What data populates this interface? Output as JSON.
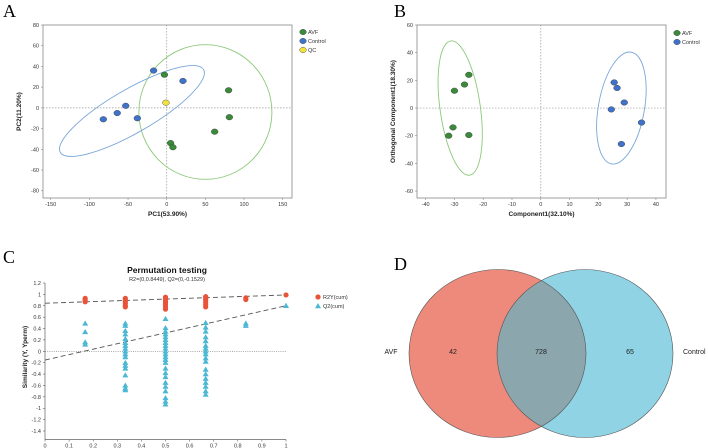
{
  "chart_data": [
    {
      "panel": "A",
      "type": "scatter",
      "xlabel": "PC1(53.90%)",
      "ylabel": "PC2(11.20%)",
      "xlim": [
        -160,
        162
      ],
      "ylim": [
        -87,
        80
      ],
      "xticks": [
        -150,
        -100,
        -50,
        0,
        50,
        100,
        150
      ],
      "yticks": [
        -80,
        -60,
        -40,
        -20,
        0,
        20,
        40,
        60,
        80
      ],
      "legend_position": "top-right",
      "series": [
        {
          "name": "AVF",
          "color": "#3a8a3a",
          "points": [
            [
              -3,
              32
            ],
            [
              80,
              17
            ],
            [
              81,
              -9
            ],
            [
              62,
              -23
            ],
            [
              5,
              -34
            ],
            [
              8,
              -38
            ]
          ],
          "ellipse": {
            "cx": 50,
            "cy": -4,
            "rx": 86,
            "ry": 65,
            "angle": 0,
            "color": "#8cc97a"
          }
        },
        {
          "name": "Control",
          "color": "#3f72c9",
          "points": [
            [
              -17,
              36
            ],
            [
              21,
              26
            ],
            [
              -53,
              2
            ],
            [
              -64,
              -5
            ],
            [
              -38,
              -10
            ],
            [
              -82,
              -11
            ]
          ],
          "ellipse": {
            "cx": -45,
            "cy": -3,
            "rx": 107,
            "ry": 21,
            "angle": 30,
            "color": "#7aa6d8"
          }
        },
        {
          "name": "QC",
          "color": "#f1e33a",
          "points": [
            [
              -1,
              5
            ]
          ]
        }
      ]
    },
    {
      "panel": "B",
      "type": "scatter",
      "xlabel": "Component1(32.10%)",
      "ylabel": "Orthogonal Component1(18.30%)",
      "xlim": [
        -43,
        43.5
      ],
      "ylim": [
        -65,
        60
      ],
      "xticks": [
        -40,
        -30,
        -20,
        -10,
        0,
        10,
        20,
        30,
        40
      ],
      "yticks": [
        -60,
        -40,
        -20,
        0,
        20,
        40,
        60
      ],
      "legend_position": "top-right",
      "series": [
        {
          "name": "AVF",
          "color": "#3a8a3a",
          "points": [
            [
              -25,
              24
            ],
            [
              -26.5,
              17
            ],
            [
              -30,
              12.5
            ],
            [
              -30.5,
              -14
            ],
            [
              -32,
              -20
            ],
            [
              -25,
              -19.5
            ]
          ],
          "ellipse": {
            "cx": -28,
            "cy": 0,
            "rx": 7,
            "ry": 49,
            "angle": 8,
            "color": "#8cc97a"
          }
        },
        {
          "name": "Control",
          "color": "#3f72c9",
          "points": [
            [
              25.5,
              18.5
            ],
            [
              26.5,
              14.5
            ],
            [
              29,
              4
            ],
            [
              24.5,
              -1
            ],
            [
              35,
              -10.5
            ],
            [
              28,
              -26
            ]
          ],
          "ellipse": {
            "cx": 28,
            "cy": 0,
            "rx": 8,
            "ry": 41,
            "angle": -10,
            "color": "#7aa6d8"
          }
        }
      ]
    },
    {
      "panel": "C",
      "type": "scatter",
      "title": "Permutation testing",
      "subtitle": "R2=(0,0.8449), Q2=(0,-0.1529)",
      "ylabel": "Similarity (Y, Yperm)",
      "xlabel": "",
      "xlim": [
        0,
        1
      ],
      "ylim": [
        -1.55,
        1.2
      ],
      "xticks": [
        0,
        0.1,
        0.2,
        0.3,
        0.4,
        0.5,
        0.6,
        0.7,
        0.8,
        0.9,
        1
      ],
      "yticks": [
        -1.4,
        -1.2,
        -1,
        -0.8,
        -0.6,
        -0.4,
        -0.2,
        0,
        0.2,
        0.4,
        0.6,
        0.8,
        1,
        1.2
      ],
      "legend_position": "right",
      "series": [
        {
          "name": "R2Y(cum)",
          "color": "#e8533a",
          "marker": "circle",
          "regression": [
            0.8449,
            0.99
          ],
          "points": {
            "0.1667": [
              0.93,
              0.9,
              0.87
            ],
            "0.3333": [
              0.93,
              0.9,
              0.87,
              0.84,
              0.8,
              0.78
            ],
            "0.5": [
              0.95,
              0.92,
              0.88,
              0.85,
              0.82,
              0.78,
              0.74
            ],
            "0.6667": [
              0.96,
              0.93,
              0.9,
              0.86,
              0.82,
              0.78
            ],
            "0.8333": [
              0.94,
              0.91
            ],
            "1": [
              0.99
            ]
          }
        },
        {
          "name": "Q2(cum)",
          "color": "#4cb8d3",
          "marker": "triangle",
          "regression": [
            -0.1529,
            0.8
          ],
          "points": {
            "0.1667": [
              0.49,
              0.34,
              0.16,
              0.12
            ],
            "0.3333": [
              0.49,
              0.45,
              0.36,
              0.3,
              0.22,
              0.15,
              0.1,
              0.05,
              0,
              -0.05,
              -0.1,
              -0.2,
              -0.25,
              -0.3,
              -0.42,
              -0.6,
              -0.65,
              -0.68
            ],
            "0.5": [
              0.57,
              0.41,
              0.35,
              0.3,
              0.25,
              0.2,
              0.15,
              0.1,
              0.05,
              0,
              -0.05,
              -0.1,
              -0.15,
              -0.2,
              -0.3,
              -0.38,
              -0.45,
              -0.55,
              -0.62,
              -0.7,
              -0.82,
              -0.88,
              -0.93
            ],
            "0.6667": [
              0.5,
              0.42,
              0.35,
              0.25,
              0.18,
              0.1,
              0.05,
              0,
              -0.05,
              -0.12,
              -0.18,
              -0.32,
              -0.4,
              -0.48,
              -0.55,
              -0.62,
              -0.7,
              -0.76
            ],
            "0.8333": [
              0.49,
              0.45
            ],
            "1": [
              0.8
            ]
          }
        }
      ]
    },
    {
      "panel": "D",
      "type": "venn",
      "sets": [
        {
          "name": "AVF",
          "only": 42,
          "color": "#ee8a7c"
        },
        {
          "name": "Control",
          "only": 65,
          "color": "#8fd3e4"
        }
      ],
      "intersection": 728,
      "intersection_color": "#8ba6ad"
    }
  ],
  "panel_labels": [
    "A",
    "B",
    "C",
    "D"
  ]
}
